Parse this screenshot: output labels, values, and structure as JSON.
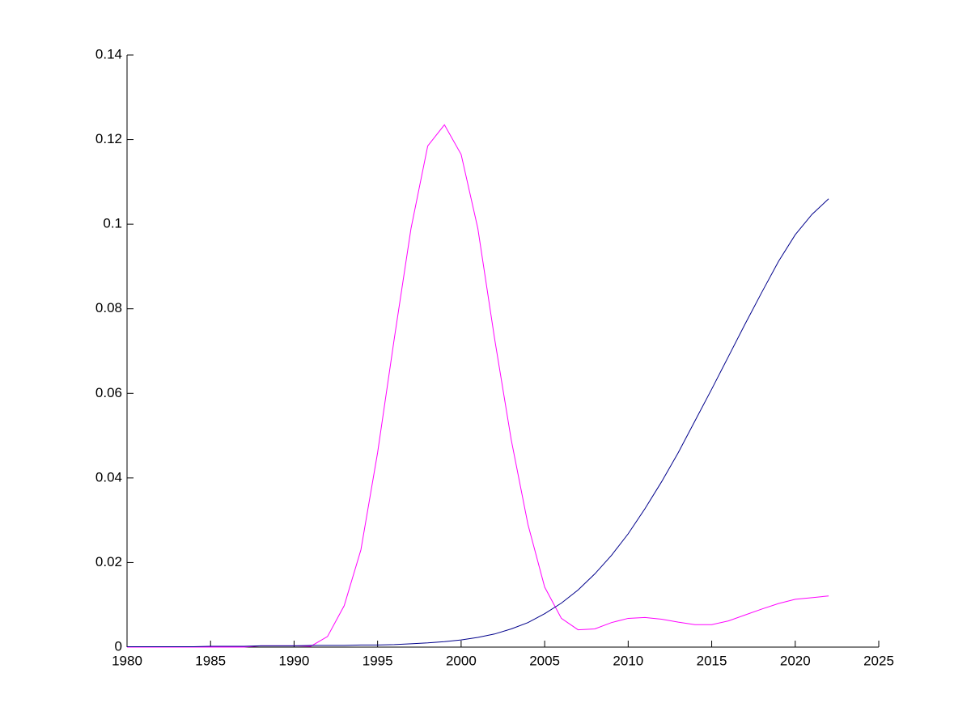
{
  "chart_data": {
    "type": "line",
    "x": [
      1980,
      1981,
      1982,
      1983,
      1984,
      1985,
      1986,
      1987,
      1988,
      1989,
      1990,
      1991,
      1992,
      1993,
      1994,
      1995,
      1996,
      1997,
      1998,
      1999,
      2000,
      2001,
      2002,
      2003,
      2004,
      2005,
      2006,
      2007,
      2008,
      2009,
      2010,
      2011,
      2012,
      2013,
      2014,
      2015,
      2016,
      2017,
      2018,
      2019,
      2020,
      2021,
      2022
    ],
    "series": [
      {
        "color": "#ff00ff",
        "values": [
          0,
          0,
          0,
          0,
          0,
          0,
          0,
          0,
          0.0003,
          0.0003,
          0.0003,
          0.0002,
          0.0025,
          0.0098,
          0.023,
          0.046,
          0.073,
          0.099,
          0.1185,
          0.1235,
          0.1165,
          0.099,
          0.073,
          0.049,
          0.029,
          0.0142,
          0.0068,
          0.0041,
          0.0043,
          0.0058,
          0.0068,
          0.007,
          0.0066,
          0.0059,
          0.0053,
          0.0053,
          0.0062,
          0.0076,
          0.009,
          0.0103,
          0.0113,
          0.0117,
          0.0121
        ]
      },
      {
        "color": "#00008b",
        "values": [
          0.0001,
          0.0001,
          0.0001,
          0.0001,
          0.0001,
          0.0002,
          0.0002,
          0.0002,
          0.0003,
          0.0003,
          0.0003,
          0.0004,
          0.0004,
          0.0004,
          0.0005,
          0.0005,
          0.0006,
          0.0008,
          0.001,
          0.0013,
          0.0017,
          0.0023,
          0.0031,
          0.0043,
          0.0058,
          0.0079,
          0.0104,
          0.0135,
          0.0173,
          0.0217,
          0.0268,
          0.0327,
          0.0391,
          0.046,
          0.0535,
          0.061,
          0.0687,
          0.0764,
          0.0839,
          0.0912,
          0.0975,
          0.1023,
          0.106
        ]
      }
    ],
    "xlim": [
      1980,
      2025
    ],
    "xticks": [
      1980,
      1985,
      1990,
      1995,
      2000,
      2005,
      2010,
      2015,
      2020,
      2025
    ],
    "ylim": [
      0,
      0.14
    ],
    "yticks": [
      0,
      0.02,
      0.04,
      0.06,
      0.08,
      0.1,
      0.12,
      0.14
    ],
    "grid": false
  }
}
